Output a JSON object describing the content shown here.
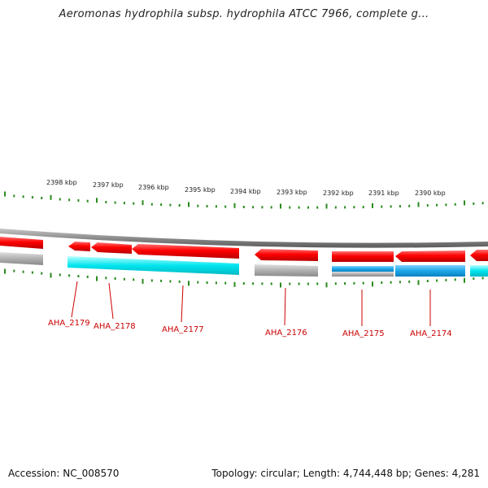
{
  "title": "Aeromonas hydrophila subsp. hydrophila ATCC 7966, complete g...",
  "footer": {
    "accession": "Accession: NC_008570",
    "summary": "Topology: circular; Length: 4,744,448 bp; Genes: 4,281"
  },
  "ruler": {
    "labels": [
      "2398 kbp",
      "2397 kbp",
      "2396 kbp",
      "2395 kbp",
      "2394 kbp",
      "2393 kbp",
      "2392 kbp",
      "2391 kbp",
      "2390 kbp"
    ]
  },
  "gene_labels": [
    "AHA_2179",
    "AHA_2178",
    "AHA_2177",
    "AHA_2176",
    "AHA_2175",
    "AHA_2174"
  ],
  "colors": {
    "gene_cds": "#ff0000",
    "rna_track": "#00e5ee",
    "rna_track_alt": "#1ca8e8",
    "pseudo_track": "#b0b0b0",
    "tick": "#2a8a1e",
    "backbone": "#8c8c8c",
    "label": "#cc0000"
  }
}
